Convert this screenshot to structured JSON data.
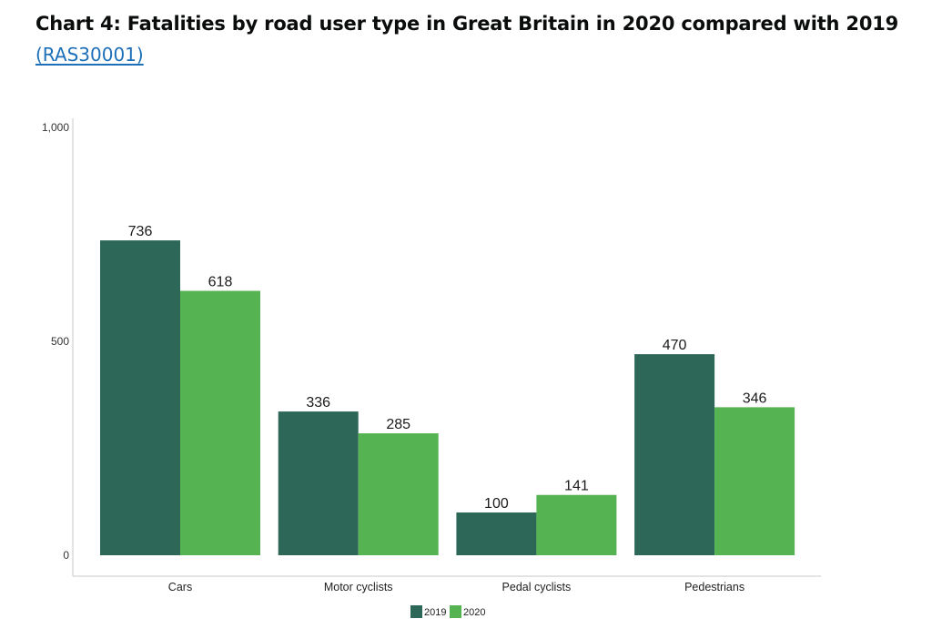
{
  "header": {
    "title": "Chart 4: Fatalities by road user type in Great Britain in 2020 compared with 2019",
    "link_text": "(RAS30001)"
  },
  "chart_data": {
    "type": "bar",
    "title": "",
    "xlabel": "",
    "ylabel": "",
    "categories": [
      "Cars",
      "Motor cyclists",
      "Pedal cyclists",
      "Pedestrians"
    ],
    "series": [
      {
        "name": "2019",
        "values": [
          736,
          336,
          100,
          470
        ],
        "color": "#2d6757"
      },
      {
        "name": "2020",
        "values": [
          618,
          285,
          141,
          346
        ],
        "color": "#55b451"
      }
    ],
    "ylim": [
      0,
      1000
    ],
    "yticks": [
      0,
      500,
      1000
    ],
    "ytick_labels": [
      "0",
      "500",
      "1,000"
    ],
    "grid": false,
    "legend_position": "bottom-center",
    "data_labels": true
  }
}
